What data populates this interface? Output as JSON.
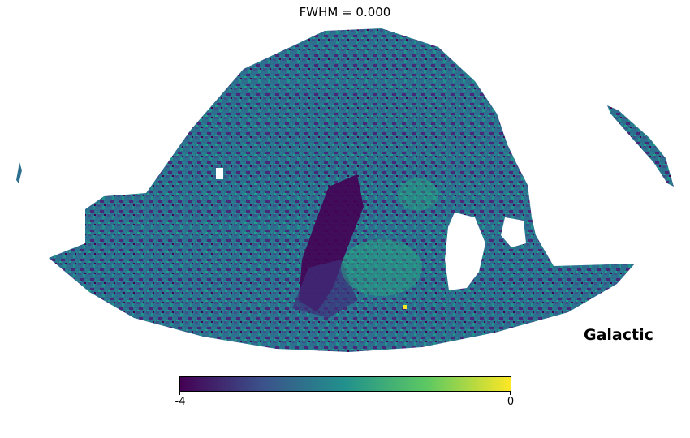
{
  "title": "FWHM = 0.000",
  "coord_label": "Galactic",
  "projection": "mollweide",
  "colorbar": {
    "colormap": "viridis",
    "min": -4,
    "max": 0,
    "min_label": "-4",
    "max_label": "0",
    "colors": [
      "#440154",
      "#3b528b",
      "#21918c",
      "#5ec962",
      "#fde725"
    ]
  }
}
